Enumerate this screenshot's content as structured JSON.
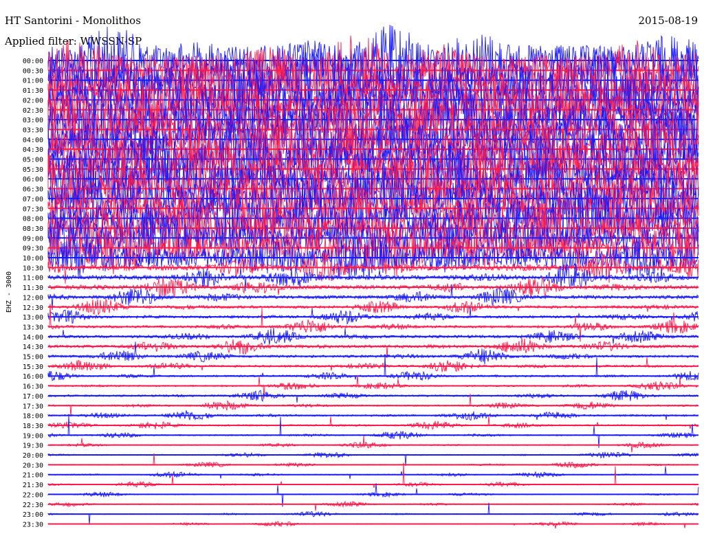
{
  "header": {
    "station": "HT Santorini - Monolithos",
    "date": "2015-08-19",
    "filter": "Applied filter: WWSSN-SP"
  },
  "colors": {
    "trace_blue": "#1a1aff",
    "trace_red": "#ff1a4b",
    "background": "#ffffff",
    "text": "#000000"
  },
  "chart_data": {
    "type": "line",
    "title": "HT Santorini - Monolithos",
    "subtitle": "Applied filter: WWSSN-SP",
    "date": "2015-08-19",
    "ylabel": "EHZ - 3000",
    "xlabel": "",
    "grid": false,
    "legend": "none",
    "rows": [
      "00:00",
      "00:30",
      "01:00",
      "01:30",
      "02:00",
      "02:30",
      "03:00",
      "03:30",
      "04:00",
      "04:30",
      "05:00",
      "05:30",
      "06:00",
      "06:30",
      "07:00",
      "07:30",
      "08:00",
      "08:30",
      "09:00",
      "09:30",
      "10:00",
      "10:30",
      "11:00",
      "11:30",
      "12:00",
      "12:30",
      "13:00",
      "13:30",
      "14:00",
      "14:30",
      "15:00",
      "15:30",
      "16:00",
      "16:30",
      "17:00",
      "17:30",
      "18:00",
      "18:30",
      "19:00",
      "19:30",
      "20:00",
      "20:30",
      "21:00",
      "21:30",
      "22:00",
      "22:30",
      "23:00",
      "23:30"
    ],
    "row_colors": [
      "blue",
      "red"
    ],
    "activity_level": [
      0.95,
      0.95,
      0.95,
      0.95,
      0.95,
      0.95,
      0.95,
      0.95,
      0.95,
      0.95,
      0.95,
      0.95,
      0.9,
      0.9,
      0.9,
      0.85,
      0.85,
      0.8,
      0.8,
      0.75,
      0.6,
      0.45,
      0.35,
      0.3,
      0.25,
      0.2,
      0.18,
      0.18,
      0.2,
      0.22,
      0.18,
      0.15,
      0.12,
      0.1,
      0.12,
      0.1,
      0.12,
      0.1,
      0.08,
      0.06,
      0.06,
      0.05,
      0.05,
      0.05,
      0.04,
      0.04,
      0.04,
      0.04
    ]
  }
}
